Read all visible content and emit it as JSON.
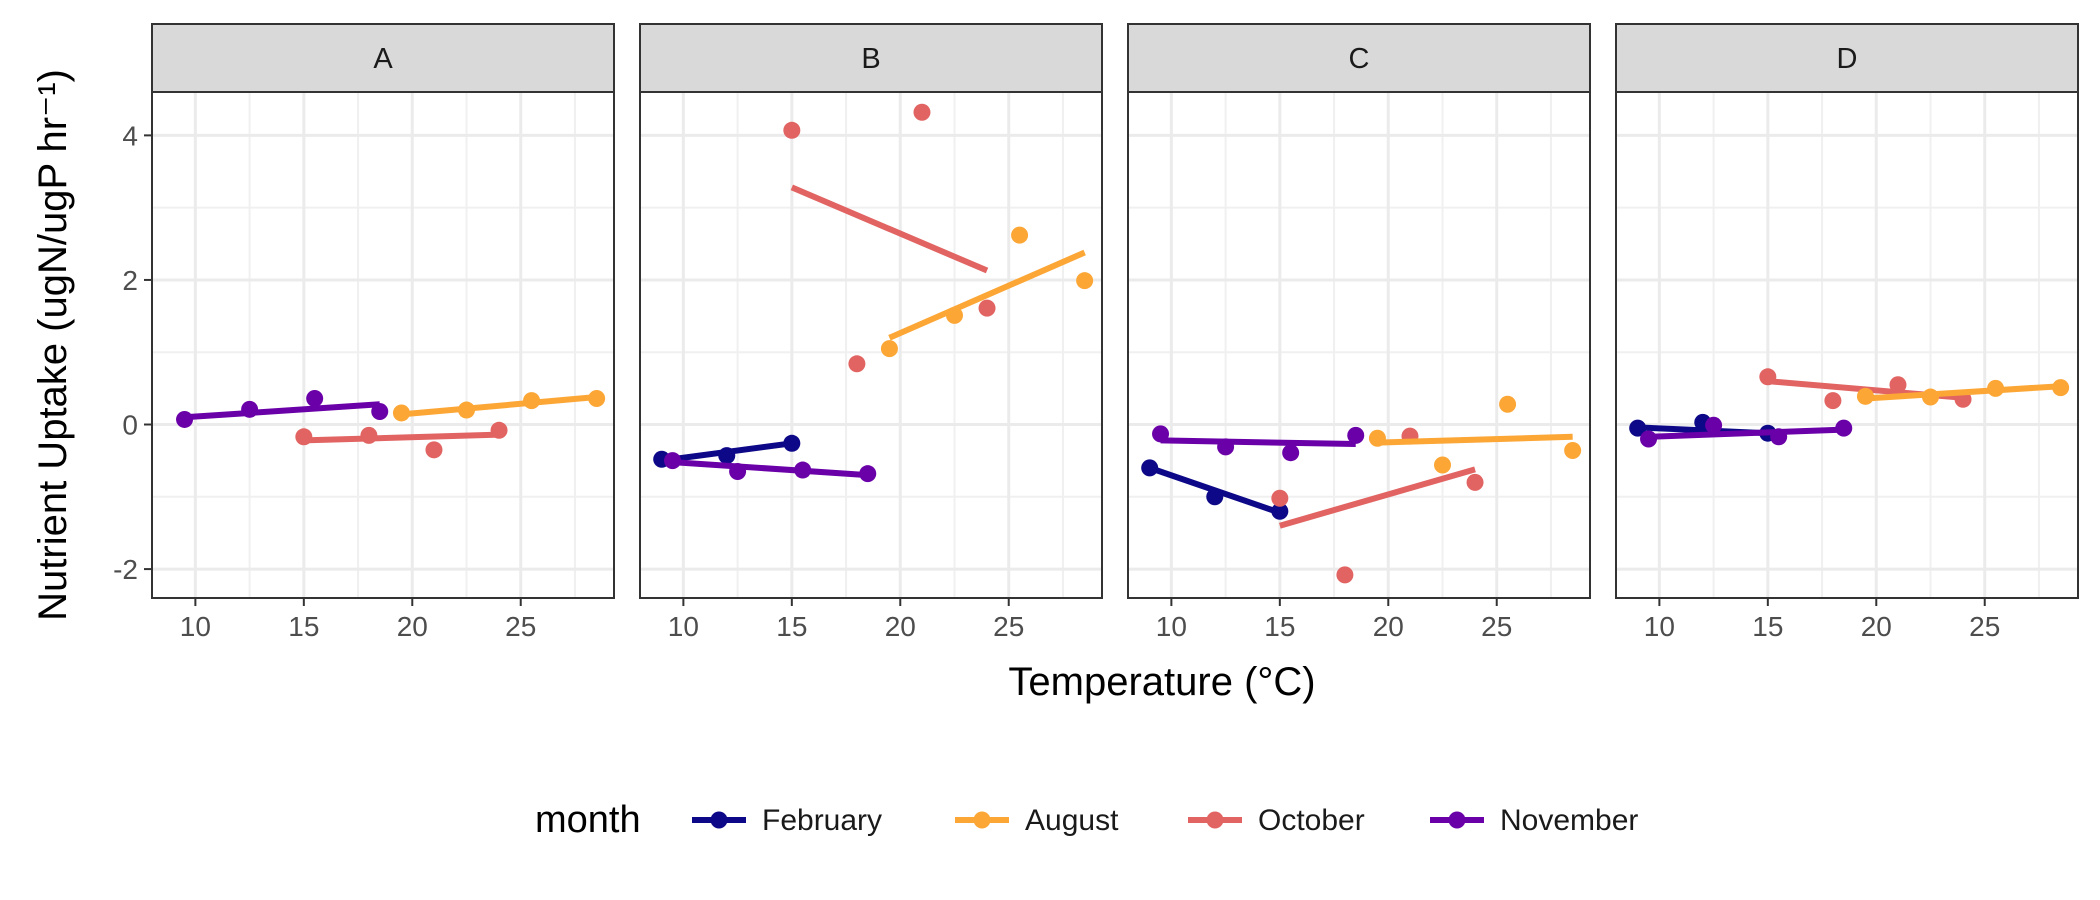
{
  "chart_data": {
    "type": "scatter",
    "xlabel": "Temperature (°C)",
    "ylabel": "Nutrient Uptake (ugN/ugP hr⁻¹)",
    "xlim": [
      8.0,
      29.3
    ],
    "ylim": [
      -2.4,
      4.6
    ],
    "x_ticks": [
      10,
      15,
      20,
      25
    ],
    "y_ticks": [
      -2,
      0,
      2,
      4
    ],
    "grid": true,
    "legend": {
      "title": "month",
      "position": "bottom",
      "entries": [
        "February",
        "August",
        "October",
        "November"
      ]
    },
    "colors": {
      "February": "#0d0887",
      "August": "#fca636",
      "October": "#e16462",
      "November": "#6a00a8"
    },
    "panels": [
      {
        "label": "A",
        "series": [
          {
            "name": "November",
            "points": [
              [
                9.5,
                0.07
              ],
              [
                12.5,
                0.21
              ],
              [
                15.5,
                0.36
              ],
              [
                18.5,
                0.18
              ]
            ],
            "fit": [
              [
                9.5,
                0.1
              ],
              [
                18.5,
                0.28
              ]
            ]
          },
          {
            "name": "October",
            "points": [
              [
                15.0,
                -0.17
              ],
              [
                18.0,
                -0.15
              ],
              [
                21.0,
                -0.35
              ],
              [
                24.0,
                -0.08
              ]
            ],
            "fit": [
              [
                15.0,
                -0.22
              ],
              [
                24.0,
                -0.14
              ]
            ]
          },
          {
            "name": "August",
            "points": [
              [
                19.5,
                0.16
              ],
              [
                22.5,
                0.2
              ],
              [
                25.5,
                0.33
              ],
              [
                28.5,
                0.36
              ]
            ],
            "fit": [
              [
                19.5,
                0.14
              ],
              [
                28.5,
                0.38
              ]
            ]
          }
        ]
      },
      {
        "label": "B",
        "series": [
          {
            "name": "February",
            "points": [
              [
                9.0,
                -0.48
              ],
              [
                12.0,
                -0.43
              ],
              [
                15.0,
                -0.26
              ]
            ],
            "fit": [
              [
                9.0,
                -0.5
              ],
              [
                15.0,
                -0.26
              ]
            ]
          },
          {
            "name": "November",
            "points": [
              [
                9.5,
                -0.5
              ],
              [
                12.5,
                -0.65
              ],
              [
                15.5,
                -0.63
              ],
              [
                18.5,
                -0.68
              ]
            ],
            "fit": [
              [
                9.5,
                -0.52
              ],
              [
                18.5,
                -0.7
              ]
            ]
          },
          {
            "name": "October",
            "points": [
              [
                15.0,
                4.07
              ],
              [
                18.0,
                0.84
              ],
              [
                21.0,
                4.32
              ],
              [
                24.0,
                1.61
              ]
            ],
            "fit": [
              [
                15.0,
                3.28
              ],
              [
                24.0,
                2.13
              ]
            ]
          },
          {
            "name": "August",
            "points": [
              [
                19.5,
                1.05
              ],
              [
                22.5,
                1.51
              ],
              [
                25.5,
                2.62
              ],
              [
                28.5,
                1.99
              ]
            ],
            "fit": [
              [
                19.5,
                1.2
              ],
              [
                28.5,
                2.38
              ]
            ]
          }
        ]
      },
      {
        "label": "C",
        "series": [
          {
            "name": "February",
            "points": [
              [
                9.0,
                -0.6
              ],
              [
                12.0,
                -1.0
              ],
              [
                15.0,
                -1.2
              ]
            ],
            "fit": [
              [
                9.0,
                -0.6
              ],
              [
                15.0,
                -1.22
              ]
            ]
          },
          {
            "name": "November",
            "points": [
              [
                9.5,
                -0.13
              ],
              [
                12.5,
                -0.31
              ],
              [
                15.5,
                -0.39
              ],
              [
                18.5,
                -0.15
              ]
            ],
            "fit": [
              [
                9.5,
                -0.22
              ],
              [
                18.5,
                -0.27
              ]
            ]
          },
          {
            "name": "October",
            "points": [
              [
                15.0,
                -1.02
              ],
              [
                18.0,
                -2.08
              ],
              [
                21.0,
                -0.16
              ],
              [
                24.0,
                -0.8
              ]
            ],
            "fit": [
              [
                15.0,
                -1.4
              ],
              [
                24.0,
                -0.62
              ]
            ]
          },
          {
            "name": "August",
            "points": [
              [
                19.5,
                -0.19
              ],
              [
                22.5,
                -0.56
              ],
              [
                25.5,
                0.28
              ],
              [
                28.5,
                -0.36
              ]
            ],
            "fit": [
              [
                19.5,
                -0.25
              ],
              [
                28.5,
                -0.17
              ]
            ]
          }
        ]
      },
      {
        "label": "D",
        "series": [
          {
            "name": "February",
            "points": [
              [
                9.0,
                -0.05
              ],
              [
                12.0,
                0.03
              ],
              [
                15.0,
                -0.12
              ]
            ],
            "fit": [
              [
                9.0,
                -0.04
              ],
              [
                15.0,
                -0.12
              ]
            ]
          },
          {
            "name": "November",
            "points": [
              [
                9.5,
                -0.2
              ],
              [
                12.5,
                -0.01
              ],
              [
                15.5,
                -0.17
              ],
              [
                18.5,
                -0.05
              ]
            ],
            "fit": [
              [
                9.5,
                -0.17
              ],
              [
                18.5,
                -0.07
              ]
            ]
          },
          {
            "name": "October",
            "points": [
              [
                15.0,
                0.66
              ],
              [
                18.0,
                0.33
              ],
              [
                21.0,
                0.55
              ],
              [
                24.0,
                0.35
              ]
            ],
            "fit": [
              [
                15.0,
                0.6
              ],
              [
                24.0,
                0.37
              ]
            ]
          },
          {
            "name": "August",
            "points": [
              [
                19.5,
                0.39
              ],
              [
                22.5,
                0.38
              ],
              [
                25.5,
                0.5
              ],
              [
                28.5,
                0.51
              ]
            ],
            "fit": [
              [
                19.5,
                0.36
              ],
              [
                28.5,
                0.53
              ]
            ]
          }
        ]
      }
    ]
  }
}
